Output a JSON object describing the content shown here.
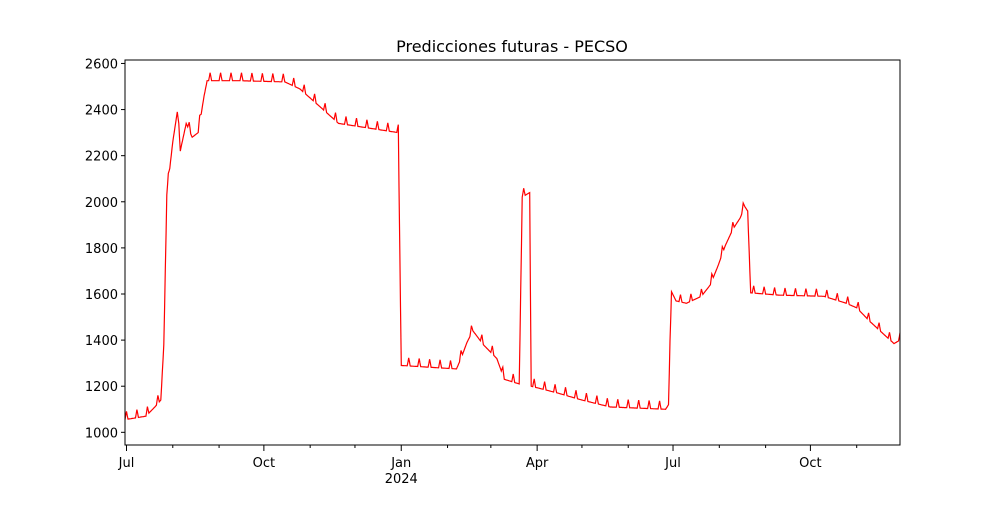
{
  "chart_data": {
    "type": "line",
    "title": "Predicciones futuras - PECSO",
    "xlabel": "",
    "ylabel": "",
    "x_range": [
      "2023-06-30",
      "2024-11-30"
    ],
    "ylim": [
      945,
      2615
    ],
    "grid": false,
    "y_ticks": [
      1000,
      1200,
      1400,
      1600,
      1800,
      2000,
      2200,
      2400,
      2600
    ],
    "x_ticks": [
      {
        "date": "2023-07-01",
        "label": "Jul",
        "sublabel": ""
      },
      {
        "date": "2023-10-01",
        "label": "Oct",
        "sublabel": ""
      },
      {
        "date": "2024-01-01",
        "label": "Jan",
        "sublabel": "2024"
      },
      {
        "date": "2024-04-01",
        "label": "Apr",
        "sublabel": ""
      },
      {
        "date": "2024-07-01",
        "label": "Jul",
        "sublabel": ""
      },
      {
        "date": "2024-10-01",
        "label": "Oct",
        "sublabel": ""
      }
    ],
    "minor_ticks": [
      "2023-08-01",
      "2023-09-01",
      "2023-11-01",
      "2023-12-01",
      "2024-02-01",
      "2024-03-01",
      "2024-05-01",
      "2024-06-01",
      "2024-08-01",
      "2024-09-01",
      "2024-11-01"
    ],
    "series": [
      {
        "color": "#ff0000",
        "weekly_ripple": 35,
        "ripple_until": "2024-06-28",
        "points": [
          [
            "2023-06-30",
            1055
          ],
          [
            "2023-07-14",
            1070
          ],
          [
            "2023-07-20",
            1110
          ],
          [
            "2023-07-24",
            1140
          ],
          [
            "2023-07-26",
            1380
          ],
          [
            "2023-07-28",
            2030
          ],
          [
            "2023-08-01",
            2260
          ],
          [
            "2023-08-04",
            2390
          ],
          [
            "2023-08-06",
            2220
          ],
          [
            "2023-08-10",
            2340
          ],
          [
            "2023-08-14",
            2280
          ],
          [
            "2023-08-18",
            2300
          ],
          [
            "2023-08-22",
            2460
          ],
          [
            "2023-08-24",
            2525
          ],
          [
            "2023-09-15",
            2525
          ],
          [
            "2023-10-15",
            2520
          ],
          [
            "2023-10-25",
            2490
          ],
          [
            "2023-11-01",
            2450
          ],
          [
            "2023-11-08",
            2410
          ],
          [
            "2023-11-20",
            2340
          ],
          [
            "2023-12-10",
            2320
          ],
          [
            "2023-12-30",
            2300
          ],
          [
            "2024-01-01",
            1290
          ],
          [
            "2024-02-07",
            1275
          ],
          [
            "2024-02-10",
            1320
          ],
          [
            "2024-02-14",
            1390
          ],
          [
            "2024-02-18",
            1440
          ],
          [
            "2024-02-25",
            1380
          ],
          [
            "2024-03-05",
            1320
          ],
          [
            "2024-03-10",
            1230
          ],
          [
            "2024-03-20",
            1210
          ],
          [
            "2024-03-22",
            2020
          ],
          [
            "2024-03-27",
            2040
          ],
          [
            "2024-03-28",
            1200
          ],
          [
            "2024-04-15",
            1170
          ],
          [
            "2024-05-01",
            1140
          ],
          [
            "2024-05-20",
            1110
          ],
          [
            "2024-06-26",
            1100
          ],
          [
            "2024-06-28",
            1120
          ],
          [
            "2024-06-30",
            1610
          ],
          [
            "2024-07-03",
            1570
          ],
          [
            "2024-07-10",
            1560
          ],
          [
            "2024-07-20",
            1590
          ],
          [
            "2024-07-26",
            1640
          ],
          [
            "2024-07-31",
            1720
          ],
          [
            "2024-08-05",
            1810
          ],
          [
            "2024-08-10",
            1880
          ],
          [
            "2024-08-15",
            1930
          ],
          [
            "2024-08-18",
            1980
          ],
          [
            "2024-08-20",
            1960
          ],
          [
            "2024-08-22",
            1605
          ],
          [
            "2024-09-10",
            1595
          ],
          [
            "2024-10-10",
            1590
          ],
          [
            "2024-10-25",
            1560
          ],
          [
            "2024-11-01",
            1540
          ],
          [
            "2024-11-10",
            1480
          ],
          [
            "2024-11-20",
            1420
          ],
          [
            "2024-11-26",
            1385
          ],
          [
            "2024-11-30",
            1400
          ]
        ]
      }
    ]
  }
}
